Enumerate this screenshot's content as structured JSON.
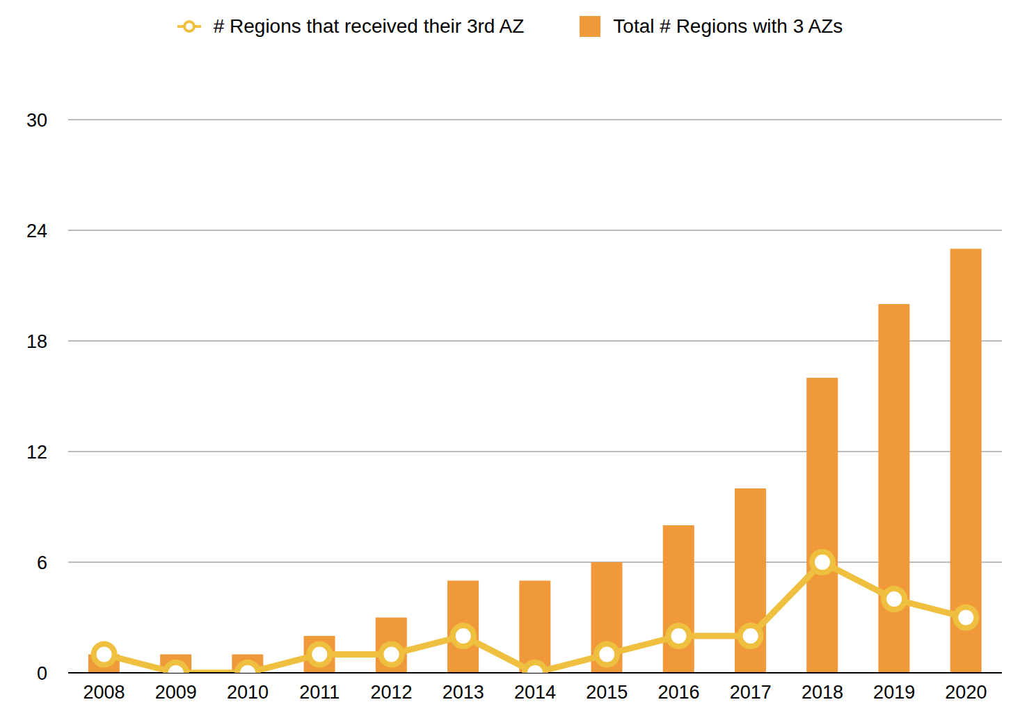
{
  "chart_data": {
    "type": "bar",
    "categories": [
      "2008",
      "2009",
      "2010",
      "2011",
      "2012",
      "2013",
      "2014",
      "2015",
      "2016",
      "2017",
      "2018",
      "2019",
      "2020"
    ],
    "series": [
      {
        "name": "# Regions that received their 3rd AZ",
        "type": "line",
        "color": "#efbf3f",
        "marker": "circle",
        "values": [
          1,
          0,
          0,
          1,
          1,
          2,
          0,
          1,
          2,
          2,
          6,
          4,
          3
        ]
      },
      {
        "name": "Total # Regions with 3 AZs",
        "type": "bar",
        "color": "#f0993a",
        "values": [
          1,
          1,
          1,
          2,
          3,
          5,
          5,
          6,
          8,
          10,
          16,
          20,
          23
        ]
      }
    ],
    "ylim": [
      0,
      30
    ],
    "yticks": [
      0,
      6,
      12,
      18,
      24,
      30
    ],
    "grid": true,
    "legend": "top"
  }
}
